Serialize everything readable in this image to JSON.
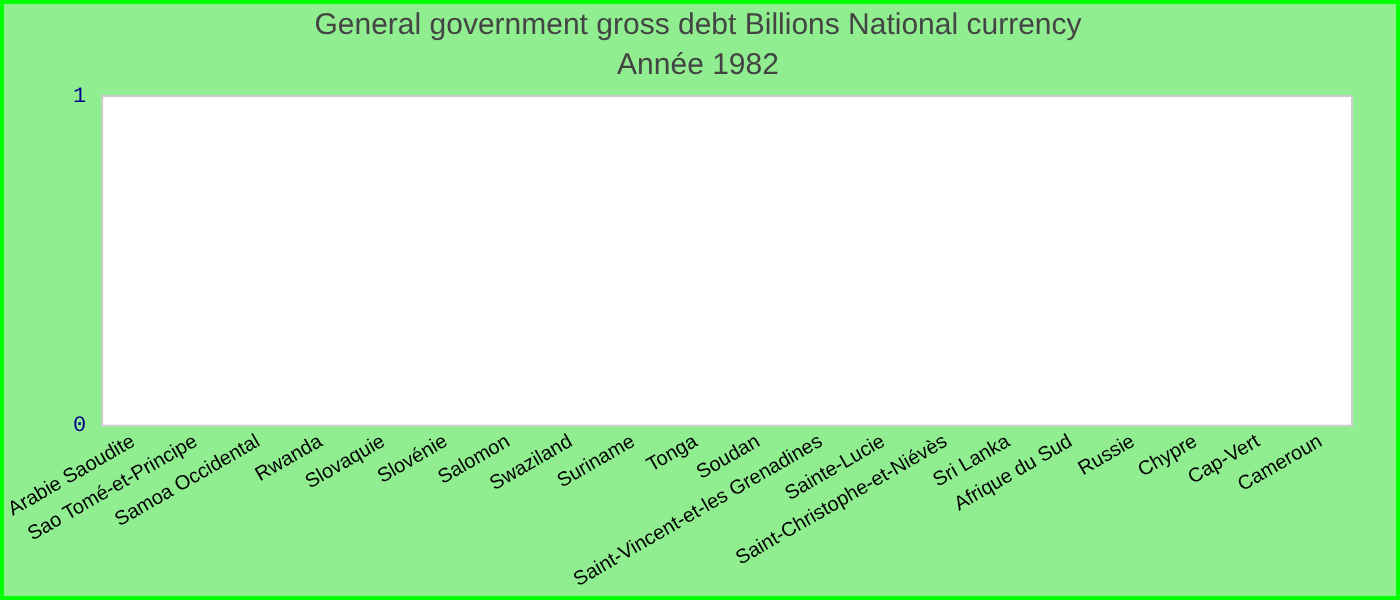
{
  "chart_data": {
    "type": "bar",
    "title": "General government gross debt Billions National currency",
    "subtitle": "Année 1982",
    "categories": [
      "Arabie Saoudite",
      "Sao Tomé-et-Principe",
      "Samoa Occidental",
      "Rwanda",
      "Slovaquie",
      "Slovénie",
      "Salomon",
      "Swaziland",
      "Suriname",
      "Tonga",
      "Soudan",
      "Saint-Vincent-et-les Grenadines",
      "Sainte-Lucie",
      "Saint-Christophe-et-Niévès",
      "Sri Lanka",
      "Afrique du Sud",
      "Russie",
      "Chypre",
      "Cap-Vert",
      "Cameroun"
    ],
    "values": [
      null,
      null,
      null,
      null,
      null,
      null,
      null,
      null,
      null,
      null,
      null,
      null,
      null,
      null,
      null,
      null,
      null,
      null,
      null,
      null
    ],
    "ylim": [
      0,
      1
    ],
    "yticks": [
      0,
      1
    ],
    "grid": false,
    "legend": false
  }
}
